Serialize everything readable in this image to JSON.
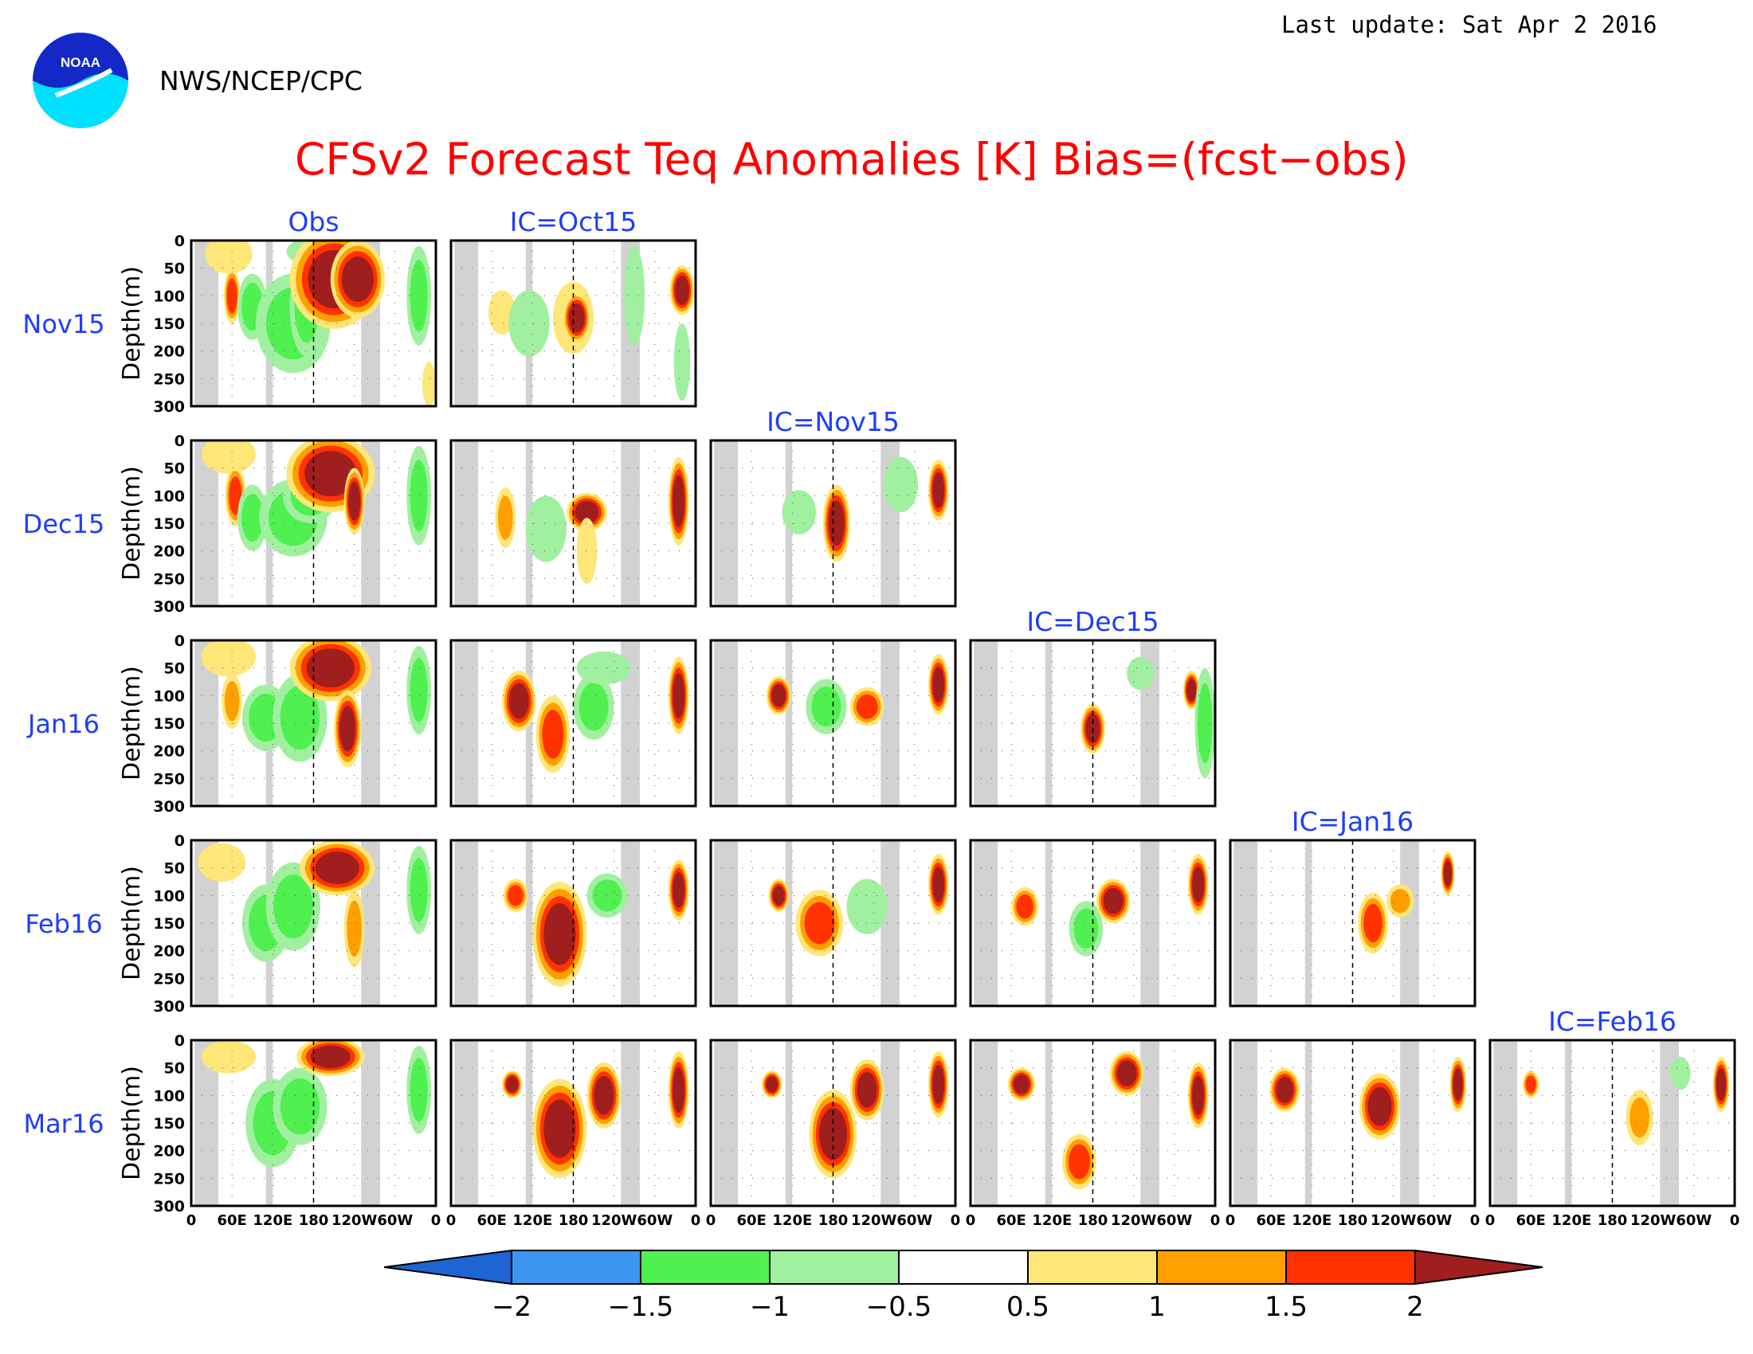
{
  "header": {
    "last_update": "Last update: Sat Apr 2 2016",
    "organization": "NWS/NCEP/CPC",
    "logo_text": "NOAA"
  },
  "chart_data": {
    "type": "heatmap",
    "title": "CFSv2 Forecast Teq Anomalies [K] Bias=(fcst−obs)",
    "ylabel": "Depth(m)",
    "xlabel": "",
    "y_ticks": [
      "0",
      "50",
      "100",
      "150",
      "200",
      "250",
      "300"
    ],
    "x_ticks": [
      "0",
      "60E",
      "120E",
      "180",
      "120W",
      "60W",
      "0"
    ],
    "x_range": [
      0,
      360
    ],
    "ylim": [
      0,
      300
    ],
    "columns": [
      "Obs",
      "IC=Oct15",
      "IC=Nov15",
      "IC=Dec15",
      "IC=Jan16",
      "IC=Feb16"
    ],
    "rows": [
      "Nov15",
      "Dec15",
      "Jan16",
      "Feb16",
      "Mar16"
    ],
    "colorbar": {
      "levels": [
        "−2",
        "−1.5",
        "−1",
        "−0.5",
        "0.5",
        "1",
        "1.5",
        "2"
      ],
      "colors": [
        "#1e64d2",
        "#3c96f0",
        "#50f050",
        "#a0f0a0",
        "#ffffff",
        "#ffe678",
        "#ffa000",
        "#ff3200",
        "#a01e1e"
      ]
    },
    "land_mask_lon": [
      [
        5,
        40
      ],
      [
        110,
        120
      ],
      [
        250,
        278
      ]
    ],
    "panels": [
      {
        "row": 0,
        "col": 0,
        "blobs": [
          {
            "lon": 55,
            "depth": 25,
            "rx": 35,
            "ry": 35,
            "level": 1
          },
          {
            "lon": 60,
            "depth": 100,
            "rx": 12,
            "ry": 50,
            "level": 3
          },
          {
            "lon": 90,
            "depth": 120,
            "rx": 22,
            "ry": 60,
            "level": -2
          },
          {
            "lon": 150,
            "depth": 150,
            "rx": 55,
            "ry": 90,
            "level": -2
          },
          {
            "lon": 170,
            "depth": 120,
            "rx": 25,
            "ry": 90,
            "level": -2
          },
          {
            "lon": 200,
            "depth": 20,
            "rx": 60,
            "ry": 30,
            "level": -1
          },
          {
            "lon": 210,
            "depth": 70,
            "rx": 65,
            "ry": 90,
            "level": 4
          },
          {
            "lon": 245,
            "depth": 70,
            "rx": 40,
            "ry": 70,
            "level": 4
          },
          {
            "lon": 335,
            "depth": 100,
            "rx": 18,
            "ry": 90,
            "level": -2
          },
          {
            "lon": 350,
            "depth": 260,
            "rx": 10,
            "ry": 40,
            "level": 1
          }
        ]
      },
      {
        "row": 0,
        "col": 1,
        "blobs": [
          {
            "lon": 75,
            "depth": 130,
            "rx": 20,
            "ry": 40,
            "level": 1
          },
          {
            "lon": 115,
            "depth": 150,
            "rx": 30,
            "ry": 60,
            "level": -1
          },
          {
            "lon": 180,
            "depth": 140,
            "rx": 30,
            "ry": 65,
            "level": 1
          },
          {
            "lon": 185,
            "depth": 140,
            "rx": 20,
            "ry": 45,
            "level": 4
          },
          {
            "lon": 270,
            "depth": 100,
            "rx": 15,
            "ry": 90,
            "level": -1
          },
          {
            "lon": 340,
            "depth": 90,
            "rx": 18,
            "ry": 45,
            "level": 4
          },
          {
            "lon": 340,
            "depth": 220,
            "rx": 12,
            "ry": 70,
            "level": -1
          }
        ]
      },
      {
        "row": 1,
        "col": 0,
        "blobs": [
          {
            "lon": 55,
            "depth": 25,
            "rx": 40,
            "ry": 35,
            "level": 1
          },
          {
            "lon": 65,
            "depth": 100,
            "rx": 15,
            "ry": 55,
            "level": 3
          },
          {
            "lon": 90,
            "depth": 140,
            "rx": 22,
            "ry": 60,
            "level": -2
          },
          {
            "lon": 150,
            "depth": 140,
            "rx": 50,
            "ry": 70,
            "level": -2
          },
          {
            "lon": 175,
            "depth": 100,
            "rx": 40,
            "ry": 50,
            "level": -2
          },
          {
            "lon": 205,
            "depth": 60,
            "rx": 65,
            "ry": 70,
            "level": 4
          },
          {
            "lon": 240,
            "depth": 110,
            "rx": 15,
            "ry": 60,
            "level": 4
          },
          {
            "lon": 335,
            "depth": 100,
            "rx": 18,
            "ry": 90,
            "level": -2
          }
        ]
      },
      {
        "row": 1,
        "col": 1,
        "blobs": [
          {
            "lon": 80,
            "depth": 140,
            "rx": 15,
            "ry": 55,
            "level": 2
          },
          {
            "lon": 140,
            "depth": 160,
            "rx": 30,
            "ry": 60,
            "level": -1
          },
          {
            "lon": 200,
            "depth": 130,
            "rx": 30,
            "ry": 35,
            "level": 4
          },
          {
            "lon": 200,
            "depth": 200,
            "rx": 15,
            "ry": 60,
            "level": 1
          },
          {
            "lon": 335,
            "depth": 110,
            "rx": 15,
            "ry": 80,
            "level": 4
          }
        ]
      },
      {
        "row": 1,
        "col": 2,
        "blobs": [
          {
            "lon": 130,
            "depth": 130,
            "rx": 25,
            "ry": 40,
            "level": -1
          },
          {
            "lon": 185,
            "depth": 150,
            "rx": 20,
            "ry": 70,
            "level": 4
          },
          {
            "lon": 280,
            "depth": 80,
            "rx": 25,
            "ry": 50,
            "level": -1
          },
          {
            "lon": 335,
            "depth": 90,
            "rx": 15,
            "ry": 55,
            "level": 4
          }
        ]
      },
      {
        "row": 2,
        "col": 0,
        "blobs": [
          {
            "lon": 55,
            "depth": 30,
            "rx": 40,
            "ry": 35,
            "level": 1
          },
          {
            "lon": 60,
            "depth": 110,
            "rx": 15,
            "ry": 50,
            "level": 2
          },
          {
            "lon": 110,
            "depth": 140,
            "rx": 35,
            "ry": 60,
            "level": -2
          },
          {
            "lon": 160,
            "depth": 140,
            "rx": 40,
            "ry": 80,
            "level": -2
          },
          {
            "lon": 205,
            "depth": 50,
            "rx": 60,
            "ry": 60,
            "level": 4
          },
          {
            "lon": 230,
            "depth": 160,
            "rx": 20,
            "ry": 70,
            "level": 4
          },
          {
            "lon": 335,
            "depth": 90,
            "rx": 18,
            "ry": 80,
            "level": -2
          }
        ]
      },
      {
        "row": 2,
        "col": 1,
        "blobs": [
          {
            "lon": 100,
            "depth": 110,
            "rx": 25,
            "ry": 55,
            "level": 4
          },
          {
            "lon": 150,
            "depth": 170,
            "rx": 25,
            "ry": 70,
            "level": 3
          },
          {
            "lon": 210,
            "depth": 120,
            "rx": 30,
            "ry": 60,
            "level": -2
          },
          {
            "lon": 225,
            "depth": 50,
            "rx": 40,
            "ry": 30,
            "level": -1
          },
          {
            "lon": 335,
            "depth": 100,
            "rx": 15,
            "ry": 70,
            "level": 4
          }
        ]
      },
      {
        "row": 2,
        "col": 2,
        "blobs": [
          {
            "lon": 100,
            "depth": 100,
            "rx": 18,
            "ry": 35,
            "level": 4
          },
          {
            "lon": 170,
            "depth": 120,
            "rx": 30,
            "ry": 50,
            "level": -2
          },
          {
            "lon": 230,
            "depth": 120,
            "rx": 25,
            "ry": 35,
            "level": 3
          },
          {
            "lon": 335,
            "depth": 80,
            "rx": 15,
            "ry": 55,
            "level": 4
          }
        ]
      },
      {
        "row": 2,
        "col": 3,
        "blobs": [
          {
            "lon": 180,
            "depth": 160,
            "rx": 18,
            "ry": 45,
            "level": 4
          },
          {
            "lon": 250,
            "depth": 60,
            "rx": 20,
            "ry": 30,
            "level": -1
          },
          {
            "lon": 325,
            "depth": 90,
            "rx": 12,
            "ry": 35,
            "level": 4
          },
          {
            "lon": 345,
            "depth": 150,
            "rx": 15,
            "ry": 100,
            "level": -2
          }
        ]
      },
      {
        "row": 3,
        "col": 0,
        "blobs": [
          {
            "lon": 45,
            "depth": 40,
            "rx": 35,
            "ry": 35,
            "level": 1
          },
          {
            "lon": 110,
            "depth": 150,
            "rx": 35,
            "ry": 70,
            "level": -2
          },
          {
            "lon": 150,
            "depth": 120,
            "rx": 40,
            "ry": 80,
            "level": -2
          },
          {
            "lon": 215,
            "depth": 50,
            "rx": 55,
            "ry": 50,
            "level": 4
          },
          {
            "lon": 240,
            "depth": 160,
            "rx": 15,
            "ry": 70,
            "level": 2
          },
          {
            "lon": 335,
            "depth": 90,
            "rx": 18,
            "ry": 80,
            "level": -2
          }
        ]
      },
      {
        "row": 3,
        "col": 1,
        "blobs": [
          {
            "lon": 95,
            "depth": 100,
            "rx": 18,
            "ry": 30,
            "level": 3
          },
          {
            "lon": 160,
            "depth": 170,
            "rx": 40,
            "ry": 95,
            "level": 4
          },
          {
            "lon": 230,
            "depth": 100,
            "rx": 30,
            "ry": 40,
            "level": -2
          },
          {
            "lon": 335,
            "depth": 90,
            "rx": 15,
            "ry": 55,
            "level": 4
          }
        ]
      },
      {
        "row": 3,
        "col": 2,
        "blobs": [
          {
            "lon": 100,
            "depth": 100,
            "rx": 15,
            "ry": 30,
            "level": 4
          },
          {
            "lon": 160,
            "depth": 150,
            "rx": 35,
            "ry": 60,
            "level": 3
          },
          {
            "lon": 230,
            "depth": 120,
            "rx": 30,
            "ry": 50,
            "level": -1
          },
          {
            "lon": 335,
            "depth": 80,
            "rx": 15,
            "ry": 55,
            "level": 4
          }
        ]
      },
      {
        "row": 3,
        "col": 3,
        "blobs": [
          {
            "lon": 80,
            "depth": 120,
            "rx": 20,
            "ry": 35,
            "level": 3
          },
          {
            "lon": 170,
            "depth": 160,
            "rx": 25,
            "ry": 50,
            "level": -2
          },
          {
            "lon": 210,
            "depth": 110,
            "rx": 25,
            "ry": 40,
            "level": 4
          },
          {
            "lon": 335,
            "depth": 80,
            "rx": 15,
            "ry": 55,
            "level": 4
          }
        ]
      },
      {
        "row": 3,
        "col": 4,
        "blobs": [
          {
            "lon": 210,
            "depth": 150,
            "rx": 22,
            "ry": 55,
            "level": 3
          },
          {
            "lon": 250,
            "depth": 110,
            "rx": 20,
            "ry": 30,
            "level": 2
          },
          {
            "lon": 320,
            "depth": 60,
            "rx": 10,
            "ry": 40,
            "level": 4
          }
        ]
      },
      {
        "row": 4,
        "col": 0,
        "blobs": [
          {
            "lon": 55,
            "depth": 30,
            "rx": 40,
            "ry": 30,
            "level": 1
          },
          {
            "lon": 120,
            "depth": 150,
            "rx": 40,
            "ry": 80,
            "level": -2
          },
          {
            "lon": 160,
            "depth": 120,
            "rx": 40,
            "ry": 70,
            "level": -2
          },
          {
            "lon": 205,
            "depth": 30,
            "rx": 50,
            "ry": 35,
            "level": 4
          },
          {
            "lon": 335,
            "depth": 90,
            "rx": 18,
            "ry": 80,
            "level": -2
          }
        ]
      },
      {
        "row": 4,
        "col": 1,
        "blobs": [
          {
            "lon": 90,
            "depth": 80,
            "rx": 15,
            "ry": 25,
            "level": 4
          },
          {
            "lon": 160,
            "depth": 160,
            "rx": 40,
            "ry": 90,
            "level": 4
          },
          {
            "lon": 225,
            "depth": 100,
            "rx": 25,
            "ry": 60,
            "level": 4
          },
          {
            "lon": 335,
            "depth": 90,
            "rx": 15,
            "ry": 70,
            "level": 4
          }
        ]
      },
      {
        "row": 4,
        "col": 2,
        "blobs": [
          {
            "lon": 90,
            "depth": 80,
            "rx": 15,
            "ry": 25,
            "level": 4
          },
          {
            "lon": 180,
            "depth": 170,
            "rx": 35,
            "ry": 80,
            "level": 4
          },
          {
            "lon": 230,
            "depth": 90,
            "rx": 25,
            "ry": 55,
            "level": 4
          },
          {
            "lon": 335,
            "depth": 80,
            "rx": 15,
            "ry": 60,
            "level": 4
          }
        ]
      },
      {
        "row": 4,
        "col": 3,
        "blobs": [
          {
            "lon": 75,
            "depth": 80,
            "rx": 20,
            "ry": 30,
            "level": 4
          },
          {
            "lon": 160,
            "depth": 220,
            "rx": 25,
            "ry": 50,
            "level": 3
          },
          {
            "lon": 230,
            "depth": 60,
            "rx": 25,
            "ry": 40,
            "level": 4
          },
          {
            "lon": 335,
            "depth": 100,
            "rx": 15,
            "ry": 60,
            "level": 4
          }
        ]
      },
      {
        "row": 4,
        "col": 4,
        "blobs": [
          {
            "lon": 80,
            "depth": 90,
            "rx": 22,
            "ry": 40,
            "level": 4
          },
          {
            "lon": 220,
            "depth": 120,
            "rx": 30,
            "ry": 60,
            "level": 4
          },
          {
            "lon": 335,
            "depth": 80,
            "rx": 12,
            "ry": 50,
            "level": 4
          }
        ]
      },
      {
        "row": 4,
        "col": 5,
        "blobs": [
          {
            "lon": 60,
            "depth": 80,
            "rx": 12,
            "ry": 25,
            "level": 3
          },
          {
            "lon": 220,
            "depth": 140,
            "rx": 20,
            "ry": 50,
            "level": 2
          },
          {
            "lon": 280,
            "depth": 60,
            "rx": 15,
            "ry": 30,
            "level": -1
          },
          {
            "lon": 340,
            "depth": 80,
            "rx": 12,
            "ry": 50,
            "level": 4
          }
        ]
      }
    ]
  }
}
